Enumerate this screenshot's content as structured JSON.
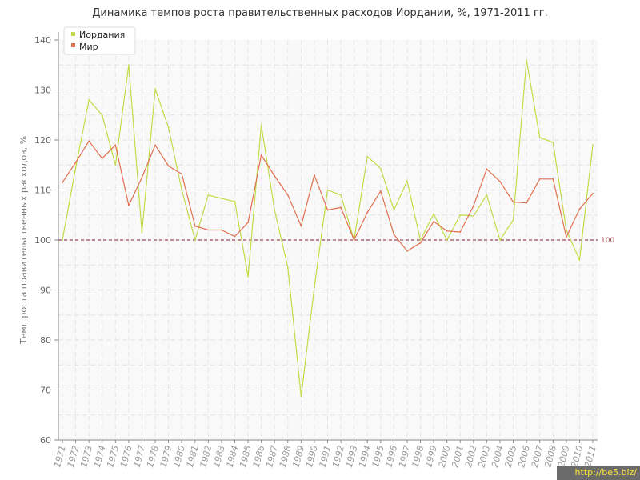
{
  "chart_data": {
    "type": "line",
    "title": "Динамика темпов роста правительственных расходов Иордании, %, 1971-2011 гг.",
    "ylabel": "Темп роста правительственных расходов, %",
    "xlabel": "",
    "ylim": [
      60,
      140
    ],
    "yticks": [
      60,
      70,
      80,
      90,
      100,
      110,
      120,
      130,
      140
    ],
    "grid": true,
    "legend_position": "top-left",
    "x": [
      "1971",
      "1972",
      "1973",
      "1974",
      "1975",
      "1976",
      "1977",
      "1978",
      "1979",
      "1980",
      "1981",
      "1982",
      "1983",
      "1984",
      "1985",
      "1986",
      "1987",
      "1988",
      "1989",
      "1990",
      "1991",
      "1992",
      "1993",
      "1994",
      "1995",
      "1996",
      "1997",
      "1998",
      "1999",
      "2000",
      "2001",
      "2002",
      "2003",
      "2004",
      "2005",
      "2006",
      "2007",
      "2008",
      "2009",
      "2010",
      "2011"
    ],
    "series": [
      {
        "name": "Иордания",
        "color": "#c2dc48",
        "values": [
          100.0,
          114.5,
          128.0,
          125.0,
          115.0,
          135.0,
          101.5,
          130.2,
          122.5,
          110.0,
          100.0,
          109.0,
          108.3,
          107.7,
          92.7,
          123.0,
          106.0,
          94.5,
          68.7,
          90.5,
          110.0,
          109.0,
          100.0,
          116.7,
          114.3,
          106.0,
          111.8,
          100.0,
          105.2,
          100.0,
          105.0,
          104.8,
          109.0,
          100.0,
          104.0,
          136.0,
          120.5,
          119.5,
          102.0,
          96.0,
          119.0
        ]
      },
      {
        "name": "Мир",
        "color": "#e07050",
        "values": [
          111.5,
          115.5,
          119.8,
          116.3,
          119.0,
          106.9,
          112.5,
          119.0,
          114.8,
          113.2,
          102.8,
          102.0,
          102.0,
          100.7,
          103.5,
          117.0,
          112.8,
          109.0,
          102.8,
          113.0,
          106.0,
          106.5,
          100.0,
          105.5,
          109.8,
          101.1,
          97.8,
          99.4,
          103.7,
          101.8,
          101.6,
          106.8,
          114.2,
          111.7,
          107.6,
          107.4,
          112.2,
          112.2,
          100.6,
          106.2,
          109.3
        ]
      }
    ],
    "reference_line": {
      "value": 100,
      "label": "100",
      "color": "#8a2030"
    }
  },
  "watermark": "http://be5.biz/"
}
